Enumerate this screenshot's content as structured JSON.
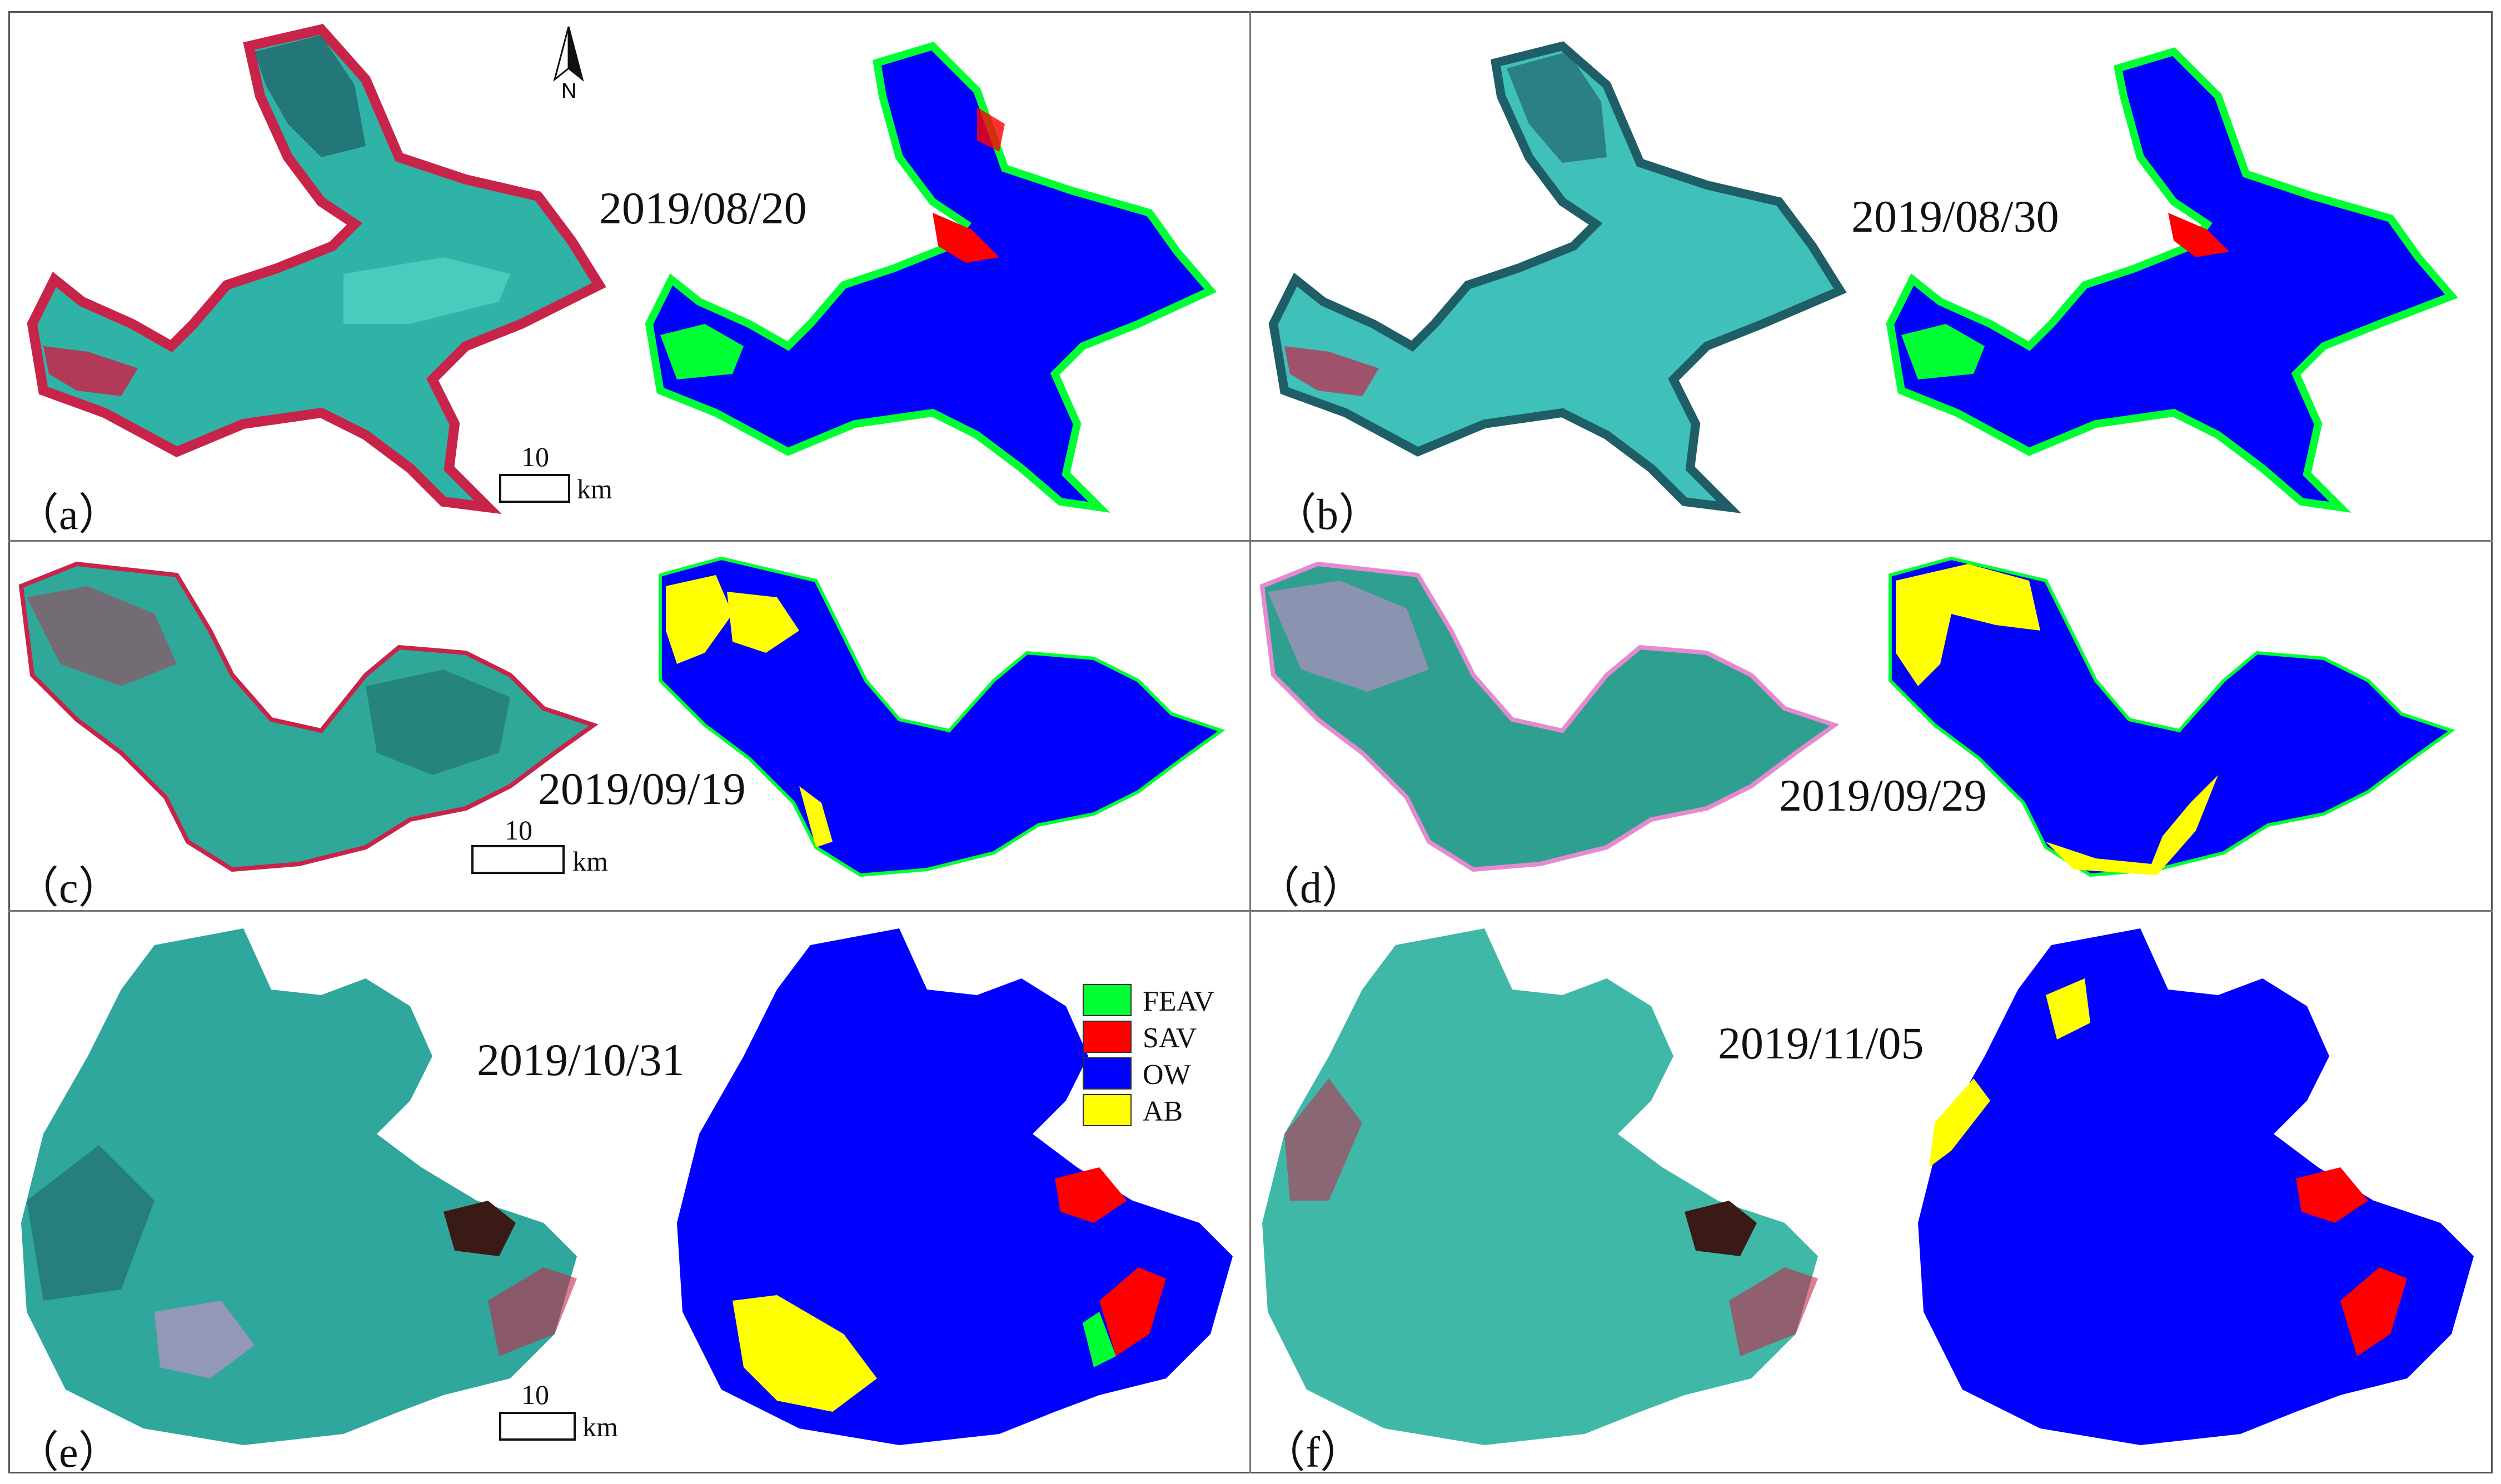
{
  "figure": {
    "panels": [
      {
        "label": "（a）",
        "date": "2019/08/20",
        "scale_value": "10",
        "scale_unit": "km",
        "north": "N"
      },
      {
        "label": "（b）",
        "date": "2019/08/30"
      },
      {
        "label": "（c）",
        "date": "2019/09/19",
        "scale_value": "10",
        "scale_unit": "km"
      },
      {
        "label": "（d）",
        "date": "2019/09/29"
      },
      {
        "label": "（e）",
        "date": "2019/10/31",
        "scale_value": "10",
        "scale_unit": "km"
      },
      {
        "label": "（f）",
        "date": "2019/11/05"
      }
    ],
    "legend": [
      {
        "name": "FEAV",
        "color": "#00ff33"
      },
      {
        "name": "SAV",
        "color": "#ff0000"
      },
      {
        "name": "OW",
        "color": "#0000ff"
      },
      {
        "name": "AB",
        "color": "#ffff00"
      }
    ],
    "colors": {
      "ow": "#0000ff",
      "feav": "#00ff33",
      "sav": "#ff0000",
      "ab": "#ffff00",
      "rgb_water": "#2fb3a6",
      "rgb_light": "#5fd9cf",
      "rgb_dark": "#1f5e66",
      "rgb_red": "#c8244a",
      "rgb_pink": "#e58ad0"
    }
  }
}
